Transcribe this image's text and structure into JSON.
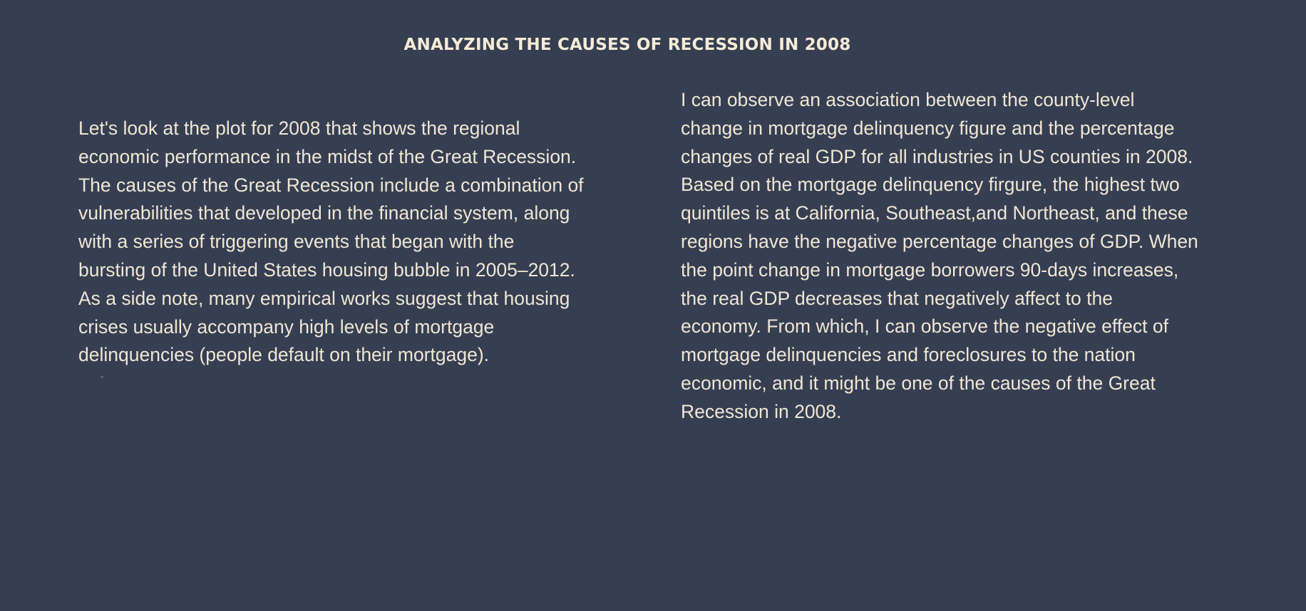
{
  "slide": {
    "title": "ANALYZING THE CAUSES OF RECESSION IN 2008",
    "left_column": {
      "lines": [
        "Let's look at the plot for 2008 that shows the regional",
        "economic performance in the midst of the Great Recession.",
        "The causes of the Great Recession include a combination of",
        "vulnerabilities that developed in the financial system, along",
        "with a series of triggering events that began with the",
        "bursting of the United States housing bubble in 2005–2012.",
        "As a side note, many empirical works suggest that housing",
        "crises usually accompany high levels of mortgage",
        "delinquencies (people default on their mortgage)."
      ]
    },
    "right_column": {
      "lines": [
        "I can observe an association between the county-level",
        "change in mortgage delinquency figure and the percentage",
        "changes of real GDP for all industries in US counties in 2008.",
        "Based on the mortgage delinquency firgure, the highest two",
        "quintiles is at California, Southeast,and Northeast, and these",
        "regions have the negative percentage changes of GDP. When",
        "the point change in mortgage borrowers 90-days increases,",
        "the real GDP decreases that negatively affect to the",
        "economy. From which, I can observe the negative effect of",
        "mortgage delinquencies and foreclosures to the nation",
        "economic, and it might be one of the causes of the Great",
        "Recession in 2008."
      ]
    }
  },
  "colors": {
    "background": "#363f52",
    "text": "#efe6d4"
  }
}
